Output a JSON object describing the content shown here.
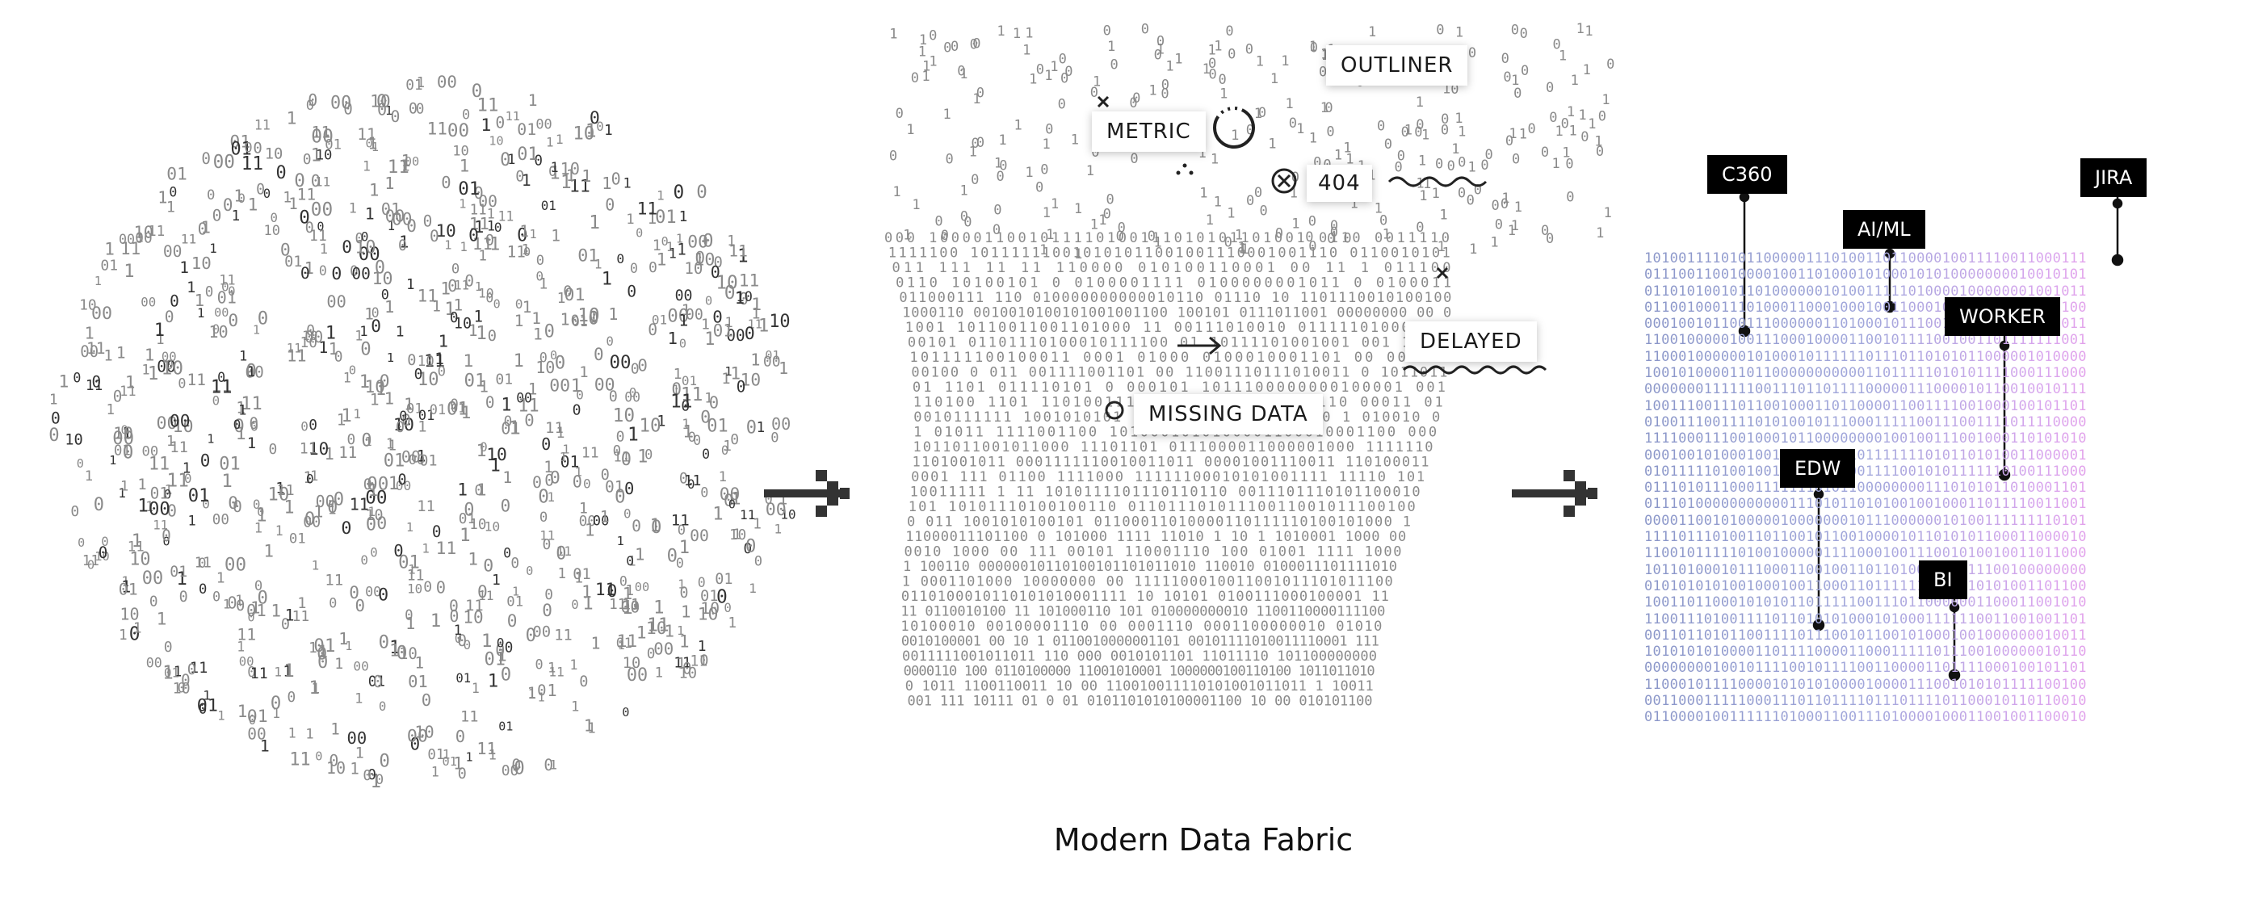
{
  "caption": "Modern Data Fabric",
  "stages": {
    "middle_labels": {
      "metric": "METRIC",
      "outliner": "OUTLINER",
      "error_code": "404",
      "delayed": "DELAYED",
      "missing_data": "MISSING DATA"
    },
    "right_labels": {
      "c360": "C360",
      "ai_ml": "AI/ML",
      "jira": "JIRA",
      "worker": "WORKER",
      "edw": "EDW",
      "bi": "BI"
    }
  },
  "icons": {
    "arrow_1": "arrow-right-icon",
    "arrow_2": "arrow-right-icon",
    "x_mark": "x-mark-icon",
    "circled_x": "circled-x-icon",
    "circle": "circle-icon",
    "dotted_circle": "dotted-circle-icon",
    "wave": "wave-icon",
    "small_arrow": "small-arrow-icon",
    "dots": "three-dots-icon"
  },
  "colors": {
    "binary_gradient_start": "#8a96c8",
    "binary_gradient_end": "#ef9be7",
    "digit_gray": "#8a8a8a",
    "label_black": "#000000"
  }
}
